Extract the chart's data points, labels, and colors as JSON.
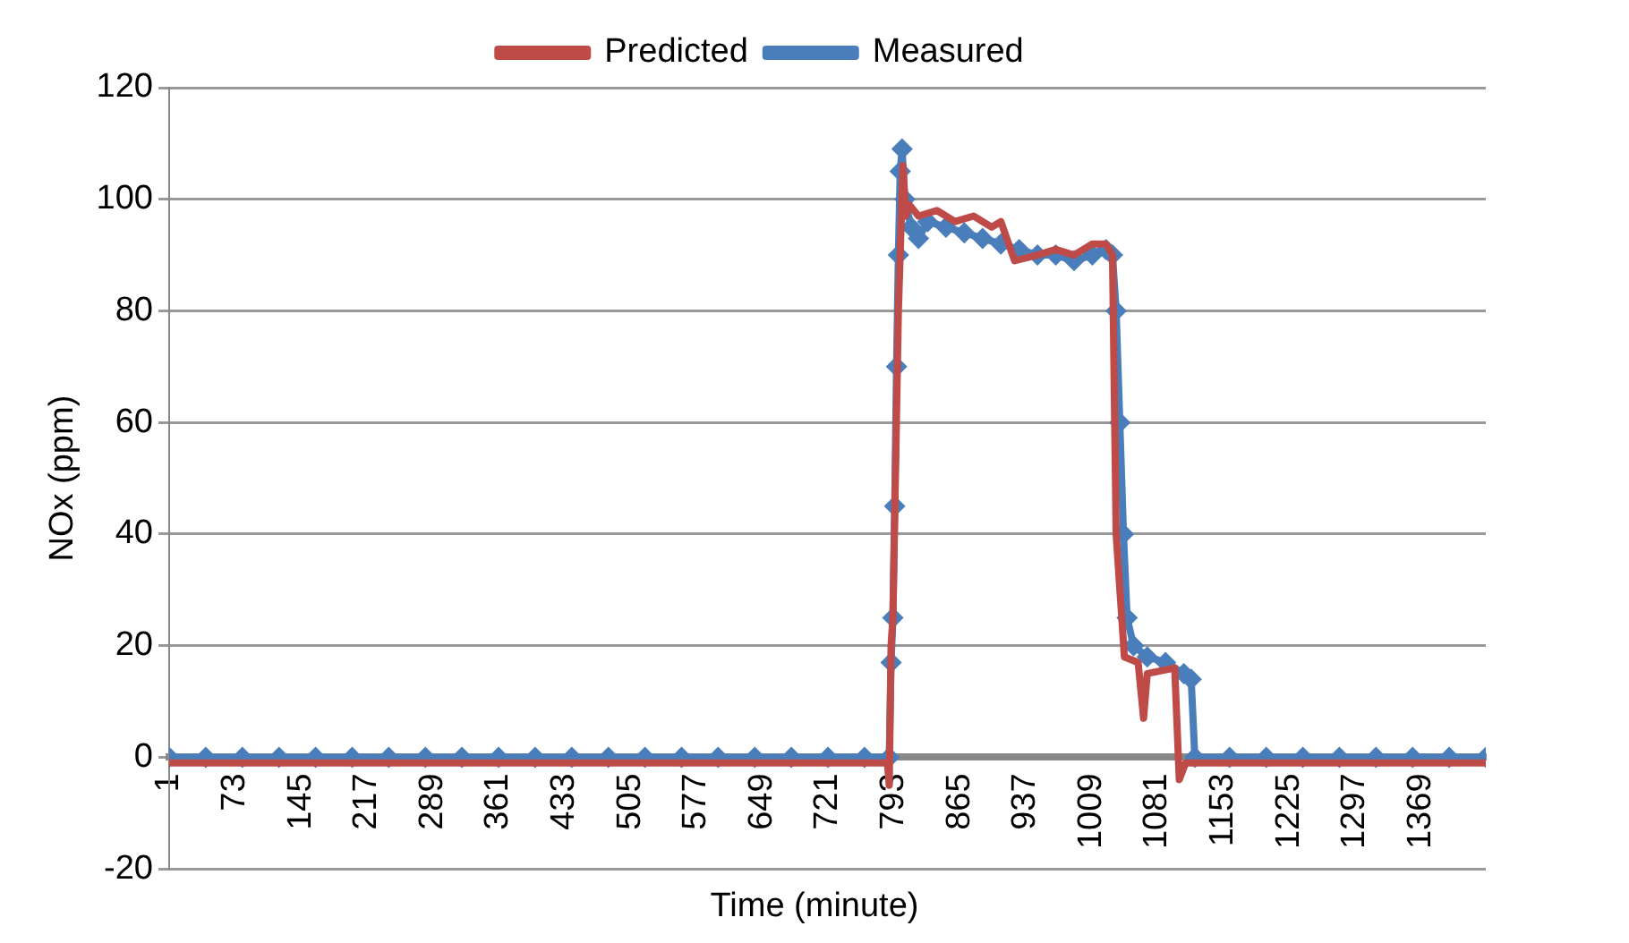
{
  "chart_data": {
    "type": "line",
    "xlabel": "Time (minute)",
    "ylabel": "NOx (ppm)",
    "xlim": [
      1,
      1440
    ],
    "xticks": [
      1,
      73,
      145,
      217,
      289,
      361,
      433,
      505,
      577,
      649,
      721,
      793,
      865,
      937,
      1009,
      1081,
      1153,
      1225,
      1297,
      1369
    ],
    "ylim": [
      -20,
      120
    ],
    "yticks": [
      -20,
      0,
      20,
      40,
      60,
      80,
      100,
      120
    ],
    "grid": "y",
    "legend": "top",
    "series": [
      {
        "name": "Measured",
        "color": "#4a7ebb",
        "marker": "diamond",
        "x": [
          1,
          41,
          81,
          121,
          161,
          201,
          241,
          281,
          321,
          361,
          401,
          441,
          481,
          521,
          561,
          601,
          641,
          681,
          721,
          761,
          788,
          790,
          792,
          794,
          796,
          798,
          800,
          802,
          805,
          812,
          820,
          830,
          850,
          870,
          890,
          910,
          930,
          950,
          970,
          990,
          1010,
          1025,
          1032,
          1036,
          1040,
          1044,
          1048,
          1055,
          1070,
          1090,
          1110,
          1118,
          1122,
          1160,
          1200,
          1240,
          1280,
          1320,
          1360,
          1400,
          1440
        ],
        "values": [
          0,
          0,
          0,
          0,
          0,
          0,
          0,
          0,
          0,
          0,
          0,
          0,
          0,
          0,
          0,
          0,
          0,
          0,
          0,
          0,
          0,
          17,
          25,
          45,
          70,
          90,
          105,
          109,
          100,
          95,
          93,
          96,
          95,
          94,
          93,
          92,
          91,
          90,
          90,
          89,
          90,
          91,
          90,
          80,
          60,
          40,
          25,
          20,
          18,
          17,
          15,
          14,
          0,
          0,
          0,
          0,
          0,
          0,
          0,
          0,
          0
        ]
      },
      {
        "name": "Predicted",
        "color": "#be4b48",
        "marker": "none",
        "x": [
          1,
          200,
          400,
          600,
          786,
          788,
          790,
          792,
          798,
          803,
          806,
          810,
          820,
          840,
          860,
          880,
          900,
          910,
          925,
          950,
          970,
          990,
          1010,
          1025,
          1032,
          1036,
          1045,
          1060,
          1066,
          1070,
          1100,
          1105,
          1112,
          1200,
          1300,
          1440
        ],
        "values": [
          -1,
          -1,
          -1,
          -1,
          -1,
          -5,
          20,
          25,
          80,
          106,
          97,
          99,
          97,
          98,
          96,
          97,
          95,
          96,
          89,
          90,
          91,
          90,
          92,
          92,
          90,
          40,
          18,
          17,
          7,
          15,
          16,
          -4,
          -1,
          -1,
          -1,
          -1
        ]
      }
    ]
  }
}
